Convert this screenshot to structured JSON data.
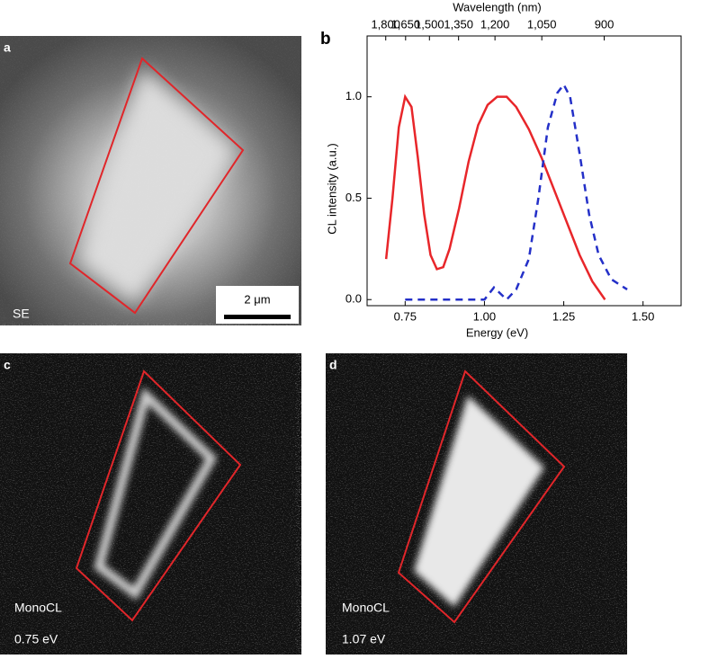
{
  "panels": {
    "a": {
      "label": "a",
      "caption": "SE",
      "scale_bar": "2 μm"
    },
    "b": {
      "label": "b"
    },
    "c": {
      "label": "c",
      "caption": "MonoCL",
      "energy": "0.75 eV"
    },
    "d": {
      "label": "d",
      "caption": "MonoCL",
      "energy": "1.07 eV"
    }
  },
  "chart_data": {
    "type": "line",
    "xlabel": "Energy (eV)",
    "ylabel": "CL intensity (a.u.)",
    "x2label": "Wavelength (nm)",
    "xlim": [
      0.63,
      1.62
    ],
    "ylim": [
      -0.03,
      1.3
    ],
    "xticks": [
      0.75,
      {
        "value": 1,
        "label": "1.00"
      },
      1.25,
      {
        "value": 1.5,
        "label": "1.50"
      }
    ],
    "yticks": [
      {
        "value": 0,
        "label": "0.0"
      },
      0.5,
      {
        "value": 1,
        "label": "1.0"
      }
    ],
    "x2ticks": [
      {
        "value": 1800,
        "label": "1,800"
      },
      {
        "value": 1650,
        "label": "1,650"
      },
      {
        "value": 1500,
        "label": "1,500"
      },
      {
        "value": 1350,
        "label": "1,350"
      },
      {
        "value": 1200,
        "label": "1,200"
      },
      {
        "value": 1050,
        "label": "1,050"
      },
      900
    ],
    "series": [
      {
        "color": "#e8262a",
        "dash": false,
        "x": [
          0.69,
          0.71,
          0.73,
          0.75,
          0.77,
          0.79,
          0.81,
          0.83,
          0.85,
          0.87,
          0.89,
          0.92,
          0.95,
          0.98,
          1.01,
          1.04,
          1.07,
          1.1,
          1.14,
          1.18,
          1.22,
          1.26,
          1.3,
          1.34,
          1.38
        ],
        "values": [
          0.2,
          0.5,
          0.85,
          1.0,
          0.95,
          0.7,
          0.42,
          0.22,
          0.15,
          0.16,
          0.25,
          0.45,
          0.68,
          0.86,
          0.96,
          1.0,
          1.0,
          0.95,
          0.84,
          0.7,
          0.54,
          0.38,
          0.22,
          0.09,
          0.0
        ]
      },
      {
        "color": "#2430c8",
        "dash": true,
        "x": [
          0.75,
          1.0,
          1.03,
          1.05,
          1.07,
          1.1,
          1.14,
          1.17,
          1.2,
          1.23,
          1.25,
          1.27,
          1.3,
          1.33,
          1.36,
          1.4,
          1.45
        ],
        "values": [
          0.0,
          0.0,
          0.06,
          0.03,
          0.0,
          0.05,
          0.2,
          0.5,
          0.85,
          1.02,
          1.06,
          1.0,
          0.72,
          0.42,
          0.22,
          0.1,
          0.05
        ]
      }
    ]
  }
}
